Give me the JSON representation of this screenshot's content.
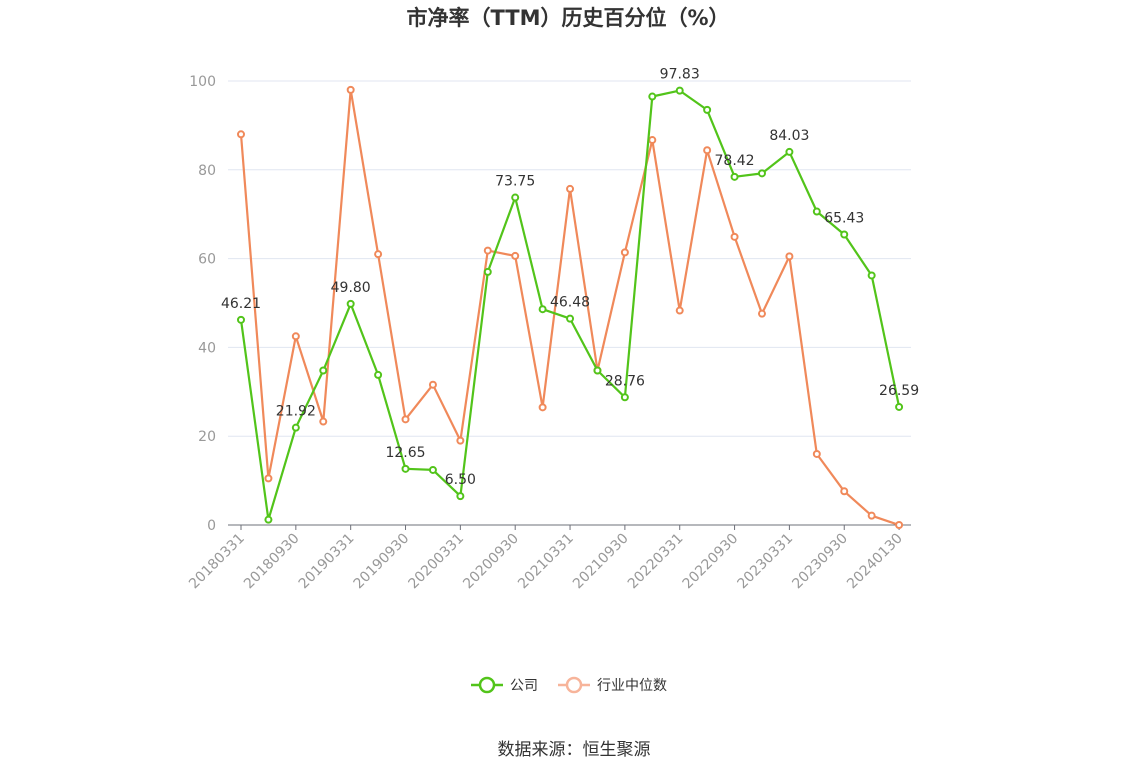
{
  "chart_data": {
    "type": "line",
    "title": "市净率（TTM）历史百分位（%）",
    "ylim": [
      0,
      100
    ],
    "yticks": [
      0,
      20,
      40,
      60,
      80,
      100
    ],
    "grid": true,
    "legend_position": "bottom",
    "x_tick_labels": [
      "20180331",
      "20180930",
      "20190331",
      "20190930",
      "20200331",
      "20200930",
      "20210331",
      "20210930",
      "20220331",
      "20220930",
      "20230331",
      "20230930",
      "20240130"
    ],
    "x": [
      "20180331",
      "20180630",
      "20180930",
      "20181231",
      "20190331",
      "20190630",
      "20190930",
      "20191231",
      "20200331",
      "20200630",
      "20200930",
      "20201231",
      "20210331",
      "20210630",
      "20210930",
      "20211231",
      "20220331",
      "20220630",
      "20220930",
      "20221231",
      "20230331",
      "20230630",
      "20230930",
      "20231231",
      "20240130"
    ],
    "series": [
      {
        "name": "公司",
        "color": "#52c41a",
        "values": [
          46.21,
          1.2,
          21.92,
          34.8,
          49.8,
          33.8,
          12.65,
          12.4,
          6.5,
          57.0,
          73.75,
          48.6,
          46.48,
          34.8,
          28.76,
          96.5,
          97.83,
          93.5,
          78.42,
          79.2,
          84.03,
          70.6,
          65.43,
          56.2,
          26.59
        ],
        "labels": {
          "0": "46.21",
          "2": "21.92",
          "4": "49.80",
          "6": "12.65",
          "8": "6.50",
          "10": "73.75",
          "12": "46.48",
          "14": "28.76",
          "16": "97.83",
          "18": "78.42",
          "20": "84.03",
          "22": "65.43",
          "24": "26.59"
        }
      },
      {
        "name": "行业中位数",
        "color": "#f0895a",
        "values": [
          88.0,
          10.5,
          42.5,
          23.3,
          98.0,
          61.0,
          23.8,
          31.6,
          19.0,
          61.8,
          60.6,
          26.5,
          75.7,
          34.8,
          61.4,
          86.7,
          48.3,
          84.4,
          64.9,
          47.6,
          60.5,
          16.0,
          7.6,
          2.1,
          0.0
        ]
      }
    ]
  },
  "source_text": "数据来源：恒生聚源"
}
